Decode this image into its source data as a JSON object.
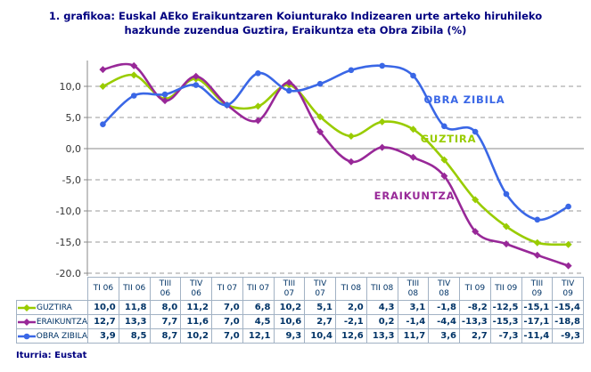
{
  "chart_data": {
    "type": "line",
    "title_lines": [
      "1. grafikoa: Euskal AEko Eraikuntzaren Koiunturako Indizearen urte arteko hiruhileko",
      "hazkunde zuzendua Guztira, Eraikuntza eta Obra Zibila (%)"
    ],
    "categories": [
      "TI 06",
      "TII 06",
      "TIII 06",
      "TIV 06",
      "TI 07",
      "TII 07",
      "TIII 07",
      "TIV 07",
      "TI 08",
      "TII 08",
      "TIII 08",
      "TIV 08",
      "TI 09",
      "TII 09",
      "TIII 09",
      "TIV 09"
    ],
    "series": [
      {
        "name": "GUZTIRA",
        "color": "#99cc00",
        "marker": "diamond",
        "chart_label": "GUZTIRA",
        "values": [
          10.0,
          11.8,
          8.0,
          11.2,
          7.0,
          6.8,
          10.2,
          5.1,
          2.0,
          4.3,
          3.1,
          -1.8,
          -8.2,
          -12.5,
          -15.1,
          -15.4
        ]
      },
      {
        "name": "ERAIKUNTZA",
        "color": "#982898",
        "marker": "diamond",
        "chart_label": "ERAIKUNTZA",
        "values": [
          12.7,
          13.3,
          7.7,
          11.6,
          7.0,
          4.5,
          10.6,
          2.7,
          -2.1,
          0.2,
          -1.4,
          -4.4,
          -13.3,
          -15.3,
          -17.1,
          -18.8
        ]
      },
      {
        "name": "OBRA ZIBILA",
        "color": "#3a67e6",
        "marker": "circle",
        "chart_label": "OBRA ZIBILA",
        "values": [
          3.9,
          8.5,
          8.7,
          10.2,
          7.0,
          12.1,
          9.3,
          10.4,
          12.6,
          13.3,
          11.7,
          3.6,
          2.7,
          -7.3,
          -11.4,
          -9.3
        ]
      }
    ],
    "y_tick_values": [
      10,
      5,
      0,
      -5,
      -10,
      -15,
      -20
    ],
    "y_tick_labels": [
      "10,0",
      "5,0",
      "0,0",
      "-5,0",
      "-10,0",
      "-15,0",
      "-20,0"
    ],
    "ylim": [
      -20,
      14.3
    ],
    "grid": "horizontal-dashed",
    "smooth": true,
    "legend_position": "data-table-left-column",
    "decimal_separator": ","
  },
  "colors": {
    "title": "#000080",
    "table_text": "#003366",
    "gridline": "#999999",
    "axis": "#888888",
    "y_label": "#333333",
    "table_border": "#a2b2c4"
  },
  "source": "Iturria: Eustat"
}
